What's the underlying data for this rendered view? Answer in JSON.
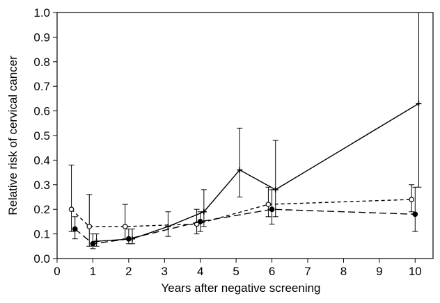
{
  "chart_data": {
    "type": "line",
    "xlabel": "Years after negative screening",
    "ylabel": "Relative risk of cervical cancer",
    "xlim": [
      0,
      10.5
    ],
    "ylim": [
      0,
      1.0
    ],
    "xticks": [
      0,
      1,
      2,
      3,
      4,
      5,
      6,
      7,
      8,
      9,
      10
    ],
    "xtick_labels": [
      "0",
      "1",
      "2",
      "3",
      "4",
      "5",
      "6",
      "7",
      "8",
      "9",
      "10"
    ],
    "yticks": [
      0.0,
      0.1,
      0.2,
      0.3,
      0.4,
      0.5,
      0.6,
      0.7,
      0.8,
      0.9,
      1.0
    ],
    "ytick_labels": [
      "0.0",
      "0.1",
      "0.2",
      "0.3",
      "0.4",
      "0.5",
      "0.6",
      "0.7",
      "0.8",
      "0.9",
      "1.0"
    ],
    "grid": false,
    "legend": false,
    "series": [
      {
        "line_style": "dashed",
        "marker": "open-circle",
        "color": "#000000",
        "x": [
          0.4,
          0.9,
          1.9,
          3.9,
          5.9,
          9.9
        ],
        "y": [
          0.2,
          0.13,
          0.13,
          0.14,
          0.22,
          0.24
        ],
        "lower": [
          0.11,
          0.05,
          0.08,
          0.1,
          0.17,
          0.19
        ],
        "upper": [
          0.38,
          0.26,
          0.22,
          0.2,
          0.29,
          0.3
        ]
      },
      {
        "line_style": "long-dashed",
        "marker": "filled-circle",
        "color": "#000000",
        "x": [
          0.5,
          1.0,
          2.0,
          4.0,
          6.0,
          10.0
        ],
        "y": [
          0.12,
          0.06,
          0.08,
          0.15,
          0.2,
          0.18
        ],
        "lower": [
          0.08,
          0.04,
          0.06,
          0.11,
          0.14,
          0.11
        ],
        "upper": [
          0.17,
          0.1,
          0.12,
          0.19,
          0.28,
          0.29
        ]
      },
      {
        "line_style": "solid",
        "marker": "plus",
        "color": "#000000",
        "x": [
          1.1,
          2.1,
          3.1,
          4.1,
          5.1,
          6.1,
          10.1
        ],
        "y": [
          0.07,
          0.08,
          0.13,
          0.19,
          0.36,
          0.28,
          0.63
        ],
        "lower": [
          0.05,
          0.06,
          0.09,
          0.13,
          0.25,
          0.17,
          0.29
        ],
        "upper": [
          0.1,
          0.12,
          0.19,
          0.28,
          0.53,
          0.48,
          1.0
        ]
      }
    ]
  }
}
